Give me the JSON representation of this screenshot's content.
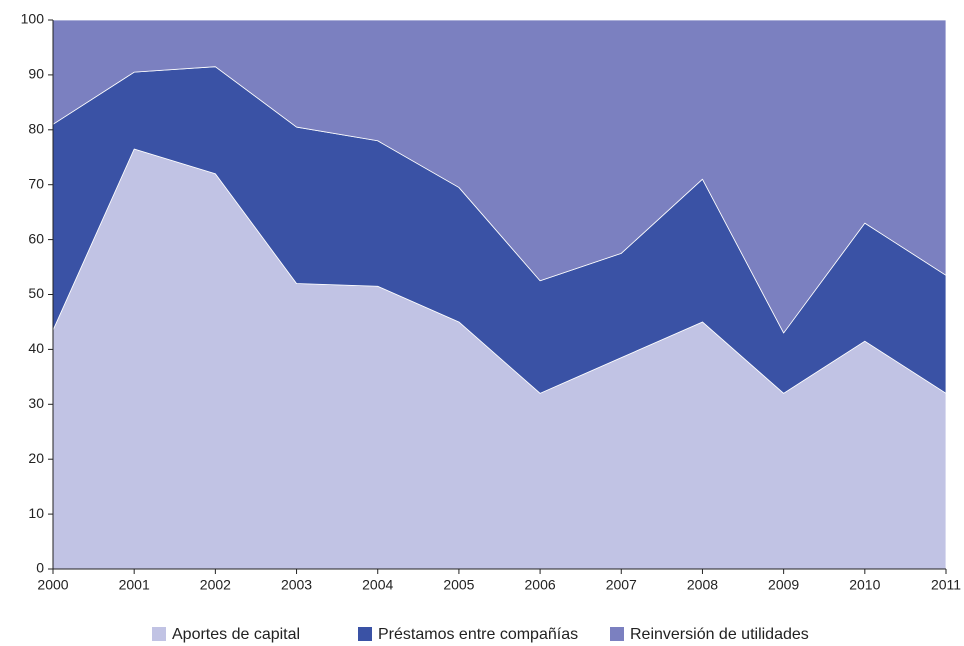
{
  "chart_data": {
    "type": "stacked_area",
    "categories": [
      "2000",
      "2001",
      "2002",
      "2003",
      "2004",
      "2005",
      "2006",
      "2007",
      "2008",
      "2009",
      "2010",
      "2011"
    ],
    "series": [
      {
        "name": "Aportes de capital",
        "color": "#c1c3e4",
        "values": [
          43.5,
          76.5,
          72,
          52,
          51.5,
          45,
          32,
          38.5,
          45,
          32,
          41.5,
          32
        ]
      },
      {
        "name": "Préstamos entre compañías",
        "color": "#3a52a5",
        "values": [
          37.5,
          14,
          19.5,
          28.5,
          26.5,
          24.5,
          20.5,
          19,
          26,
          11,
          21.5,
          21.5
        ]
      },
      {
        "name": "Reinversión de utilidades",
        "color": "#7b80c0",
        "values": [
          19,
          9.5,
          8.5,
          19.5,
          22,
          30.5,
          47.5,
          42.5,
          29,
          57,
          37,
          46.5
        ]
      }
    ],
    "ylim": [
      0,
      100
    ],
    "yticks": [
      0,
      10,
      20,
      30,
      40,
      50,
      60,
      70,
      80,
      90,
      100
    ]
  }
}
